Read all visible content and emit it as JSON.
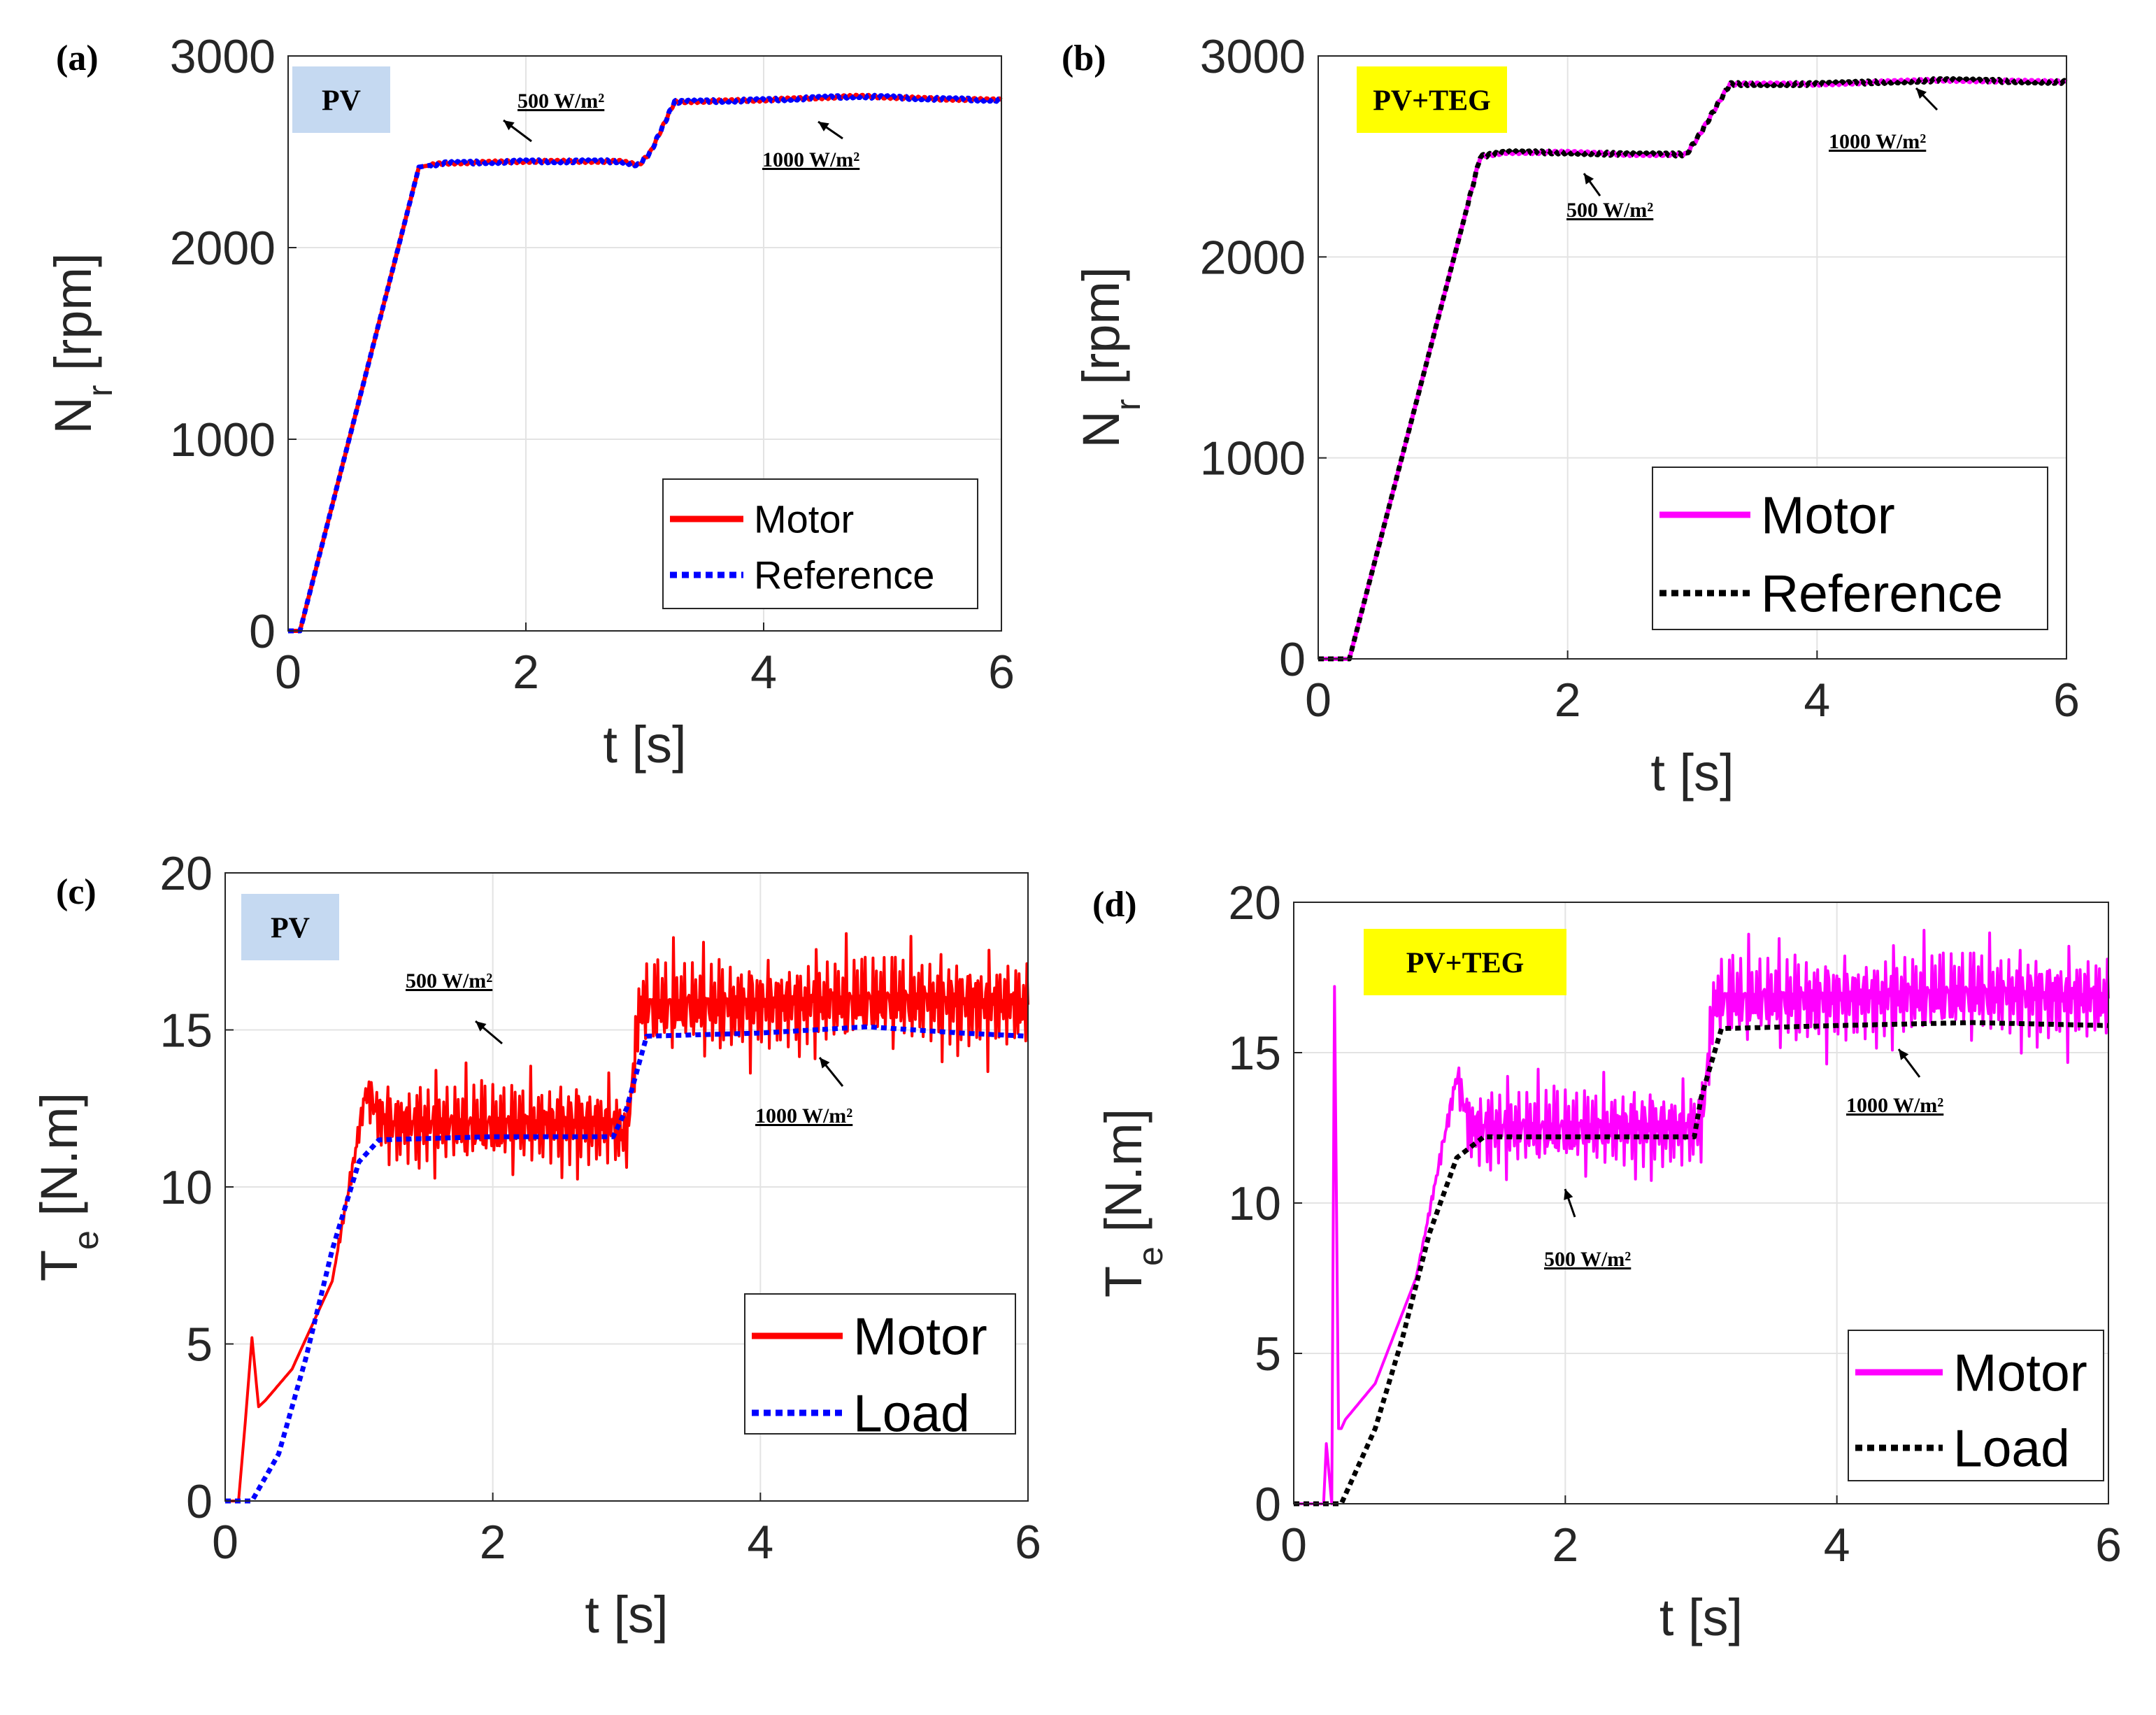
{
  "chart_data": [
    {
      "type": "line",
      "panel_label": "(a)",
      "badge": "PV",
      "badge_color": "#c5d9f1",
      "xlabel": "t [s]",
      "ylabel": {
        "main": "N",
        "sub": "r",
        "unit": "[rpm]"
      },
      "xlim": [
        0,
        6
      ],
      "ylim": [
        0,
        3000
      ],
      "xticks": [
        "0",
        "2",
        "4",
        "6"
      ],
      "yticks": [
        "0",
        "1000",
        "2000",
        "3000"
      ],
      "grid": true,
      "legend_position": "bottom-right",
      "annotations": [
        "500 W/m²",
        "1000 W/m²"
      ],
      "series": [
        {
          "name": "Motor",
          "color": "#ff0000",
          "style": "solid",
          "x": [
            0,
            0.1,
            1.1,
            1.3,
            2.0,
            2.8,
            2.95,
            3.05,
            3.25,
            4.0,
            4.8,
            5.5,
            6.0
          ],
          "y": [
            0,
            0,
            2420,
            2440,
            2450,
            2450,
            2430,
            2500,
            2760,
            2770,
            2790,
            2775,
            2770
          ]
        },
        {
          "name": "Reference",
          "color": "#0000ff",
          "style": "dotted",
          "x": [
            0,
            0.1,
            1.1,
            1.3,
            2.0,
            2.8,
            2.95,
            3.05,
            3.25,
            4.0,
            4.8,
            5.5,
            6.0
          ],
          "y": [
            0,
            0,
            2420,
            2440,
            2450,
            2450,
            2430,
            2500,
            2760,
            2770,
            2790,
            2775,
            2770
          ]
        }
      ]
    },
    {
      "type": "line",
      "panel_label": "(b)",
      "badge": "PV+TEG",
      "badge_color": "#ffff00",
      "xlabel": "t [s]",
      "ylabel": {
        "main": "N",
        "sub": "r",
        "unit": "[rpm]"
      },
      "xlim": [
        0,
        6
      ],
      "ylim": [
        0,
        3000
      ],
      "xticks": [
        "0",
        "2",
        "4",
        "6"
      ],
      "yticks": [
        "0",
        "1000",
        "2000",
        "3000"
      ],
      "grid": true,
      "legend_position": "bottom-right",
      "annotations": [
        "500 W/m²",
        "1000 W/m²"
      ],
      "series": [
        {
          "name": "Motor",
          "color": "#ff00ff",
          "style": "solid",
          "x": [
            0,
            0.25,
            1.3,
            1.5,
            2.0,
            2.5,
            2.95,
            3.05,
            3.3,
            4.0,
            5.0,
            6.0
          ],
          "y": [
            0,
            0,
            2500,
            2520,
            2520,
            2510,
            2510,
            2600,
            2860,
            2860,
            2880,
            2870
          ]
        },
        {
          "name": "Reference",
          "color": "#000000",
          "style": "dotted",
          "x": [
            0,
            0.25,
            1.3,
            1.5,
            2.0,
            2.5,
            2.95,
            3.05,
            3.3,
            4.0,
            5.0,
            6.0
          ],
          "y": [
            0,
            0,
            2500,
            2520,
            2520,
            2510,
            2510,
            2600,
            2860,
            2860,
            2880,
            2870
          ]
        }
      ]
    },
    {
      "type": "line",
      "panel_label": "(c)",
      "badge": "PV",
      "badge_color": "#c5d9f1",
      "xlabel": "t [s]",
      "ylabel": {
        "main": "T",
        "sub": "e",
        "unit": "[N.m]"
      },
      "xlim": [
        0,
        6
      ],
      "ylim": [
        0,
        20
      ],
      "xticks": [
        "0",
        "2",
        "4",
        "6"
      ],
      "yticks": [
        "0",
        "5",
        "10",
        "15",
        "20"
      ],
      "grid": true,
      "legend_position": "bottom-right",
      "annotations": [
        "500 W/m²",
        "1000 W/m²"
      ],
      "series": [
        {
          "name": "Motor",
          "color": "#ff0000",
          "style": "solid",
          "x": [
            0,
            0.1,
            0.15,
            0.2,
            0.25,
            0.3,
            0.5,
            0.8,
            1.05,
            1.2,
            2.0,
            2.9,
            3.0,
            3.1,
            4.0,
            5.0,
            6.0
          ],
          "y": [
            0,
            0,
            2.5,
            5.2,
            3.0,
            3.2,
            4.2,
            7.0,
            13.0,
            12.0,
            12.0,
            12.0,
            11.5,
            15.8,
            15.8,
            16.0,
            15.8
          ],
          "noise": [
            0,
            0,
            0,
            0,
            0,
            0,
            0,
            0,
            0.6,
            1.3,
            1.3,
            1.3,
            1.0,
            1.4,
            1.4,
            1.4,
            1.4
          ]
        },
        {
          "name": "Load",
          "color": "#0000ff",
          "style": "dotted",
          "x": [
            0,
            0.2,
            0.4,
            0.6,
            0.8,
            1.0,
            1.15,
            2.0,
            2.9,
            3.0,
            3.15,
            4.0,
            4.8,
            5.5,
            6.0
          ],
          "y": [
            0,
            0,
            1.5,
            4.5,
            8.0,
            10.8,
            11.5,
            11.6,
            11.6,
            12.5,
            14.8,
            14.9,
            15.1,
            14.9,
            14.8
          ]
        }
      ]
    },
    {
      "type": "line",
      "panel_label": "(d)",
      "badge": "PV+TEG",
      "badge_color": "#ffff00",
      "xlabel": "t [s]",
      "ylabel": {
        "main": "T",
        "sub": "e",
        "unit": "[N.m]"
      },
      "xlim": [
        0,
        6
      ],
      "ylim": [
        0,
        20
      ],
      "xticks": [
        "0",
        "2",
        "4",
        "6"
      ],
      "yticks": [
        "0",
        "5",
        "10",
        "15",
        "20"
      ],
      "grid": true,
      "legend_position": "bottom-right",
      "annotations": [
        "500 W/m²",
        "1000 W/m²"
      ],
      "series": [
        {
          "name": "Motor",
          "color": "#ff00ff",
          "style": "solid",
          "x": [
            0,
            0.22,
            0.24,
            0.28,
            0.3,
            0.33,
            0.35,
            0.38,
            0.6,
            0.9,
            1.2,
            1.3,
            2.0,
            2.95,
            3.0,
            3.1,
            4.0,
            5.0,
            6.0
          ],
          "y": [
            0,
            0,
            2.0,
            0,
            17.2,
            2.5,
            2.5,
            2.8,
            4.0,
            7.5,
            14.2,
            12.5,
            12.5,
            12.5,
            12.5,
            16.8,
            16.8,
            17.0,
            16.8
          ],
          "noise": [
            0,
            0,
            0,
            0,
            0,
            0,
            0,
            0,
            0,
            0,
            0.5,
            1.3,
            1.3,
            1.3,
            1.3,
            1.4,
            1.4,
            1.4,
            1.4
          ]
        },
        {
          "name": "Load",
          "color": "#000000",
          "style": "dotted",
          "x": [
            0,
            0.35,
            0.6,
            0.8,
            1.0,
            1.2,
            1.4,
            2.0,
            2.95,
            3.0,
            3.15,
            4.0,
            5.0,
            6.0
          ],
          "y": [
            0,
            0,
            2.5,
            5.5,
            9.0,
            11.5,
            12.2,
            12.2,
            12.2,
            13.5,
            15.8,
            15.9,
            16.0,
            15.9
          ]
        }
      ]
    }
  ]
}
